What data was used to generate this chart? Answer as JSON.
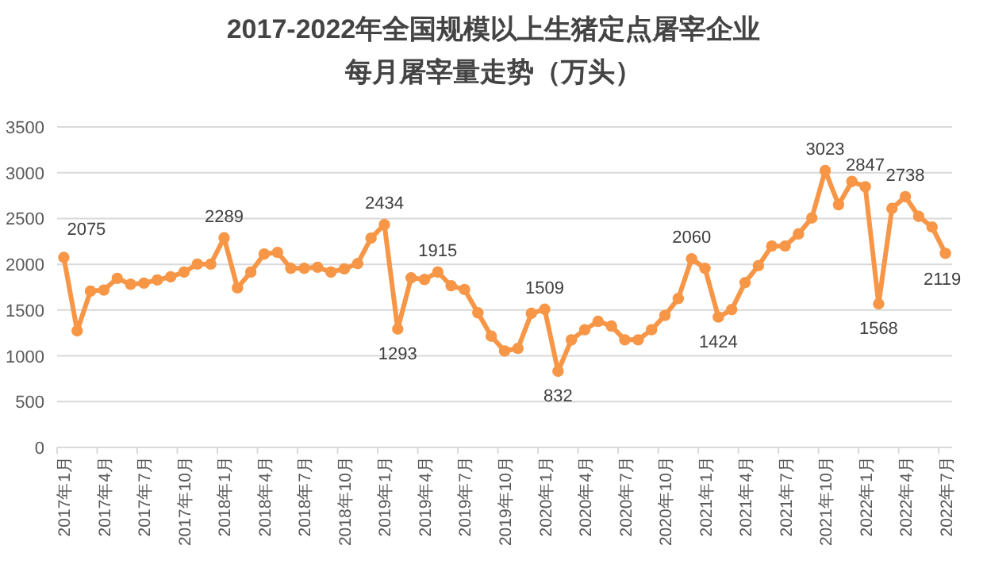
{
  "chart_data": {
    "type": "line",
    "title": "2017-2022年全国规模以上生猪定点屠宰企业",
    "subtitle": "每月屠宰量走势（万头）",
    "categories": [
      "2017年1月",
      null,
      null,
      "2017年4月",
      null,
      null,
      "2017年7月",
      null,
      null,
      "2017年10月",
      null,
      null,
      "2018年1月",
      null,
      null,
      "2018年4月",
      null,
      null,
      "2018年7月",
      null,
      null,
      "2018年10月",
      null,
      null,
      "2019年1月",
      null,
      null,
      "2019年4月",
      null,
      null,
      "2019年7月",
      null,
      null,
      "2019年10月",
      null,
      null,
      "2020年1月",
      null,
      null,
      "2020年4月",
      null,
      null,
      "2020年7月",
      null,
      null,
      "2020年10月",
      null,
      null,
      "2021年1月",
      null,
      null,
      "2021年4月",
      null,
      null,
      "2021年7月",
      null,
      null,
      "2021年10月",
      null,
      null,
      "2022年1月",
      null,
      null,
      "2022年4月",
      null,
      null,
      "2022年7月"
    ],
    "series": [
      {
        "color": "#f79646",
        "values": [
          2075,
          1274,
          1707,
          1719,
          1846,
          1782,
          1794,
          1829,
          1863,
          1915,
          2002,
          2002,
          2289,
          1742,
          1915,
          2112,
          2130,
          1956,
          1956,
          1968,
          1915,
          1950,
          2008,
          2286,
          2434,
          1293,
          1852,
          1834,
          1915,
          1765,
          1725,
          1470,
          1215,
          1053,
          1082,
          1464,
          1509,
          832,
          1175,
          1285,
          1377,
          1325,
          1175,
          1175,
          1285,
          1441,
          1626,
          2060,
          1956,
          1424,
          1505,
          1800,
          1985,
          2199,
          2199,
          2332,
          2506,
          3023,
          2650,
          2905,
          2847,
          1568,
          2610,
          2738,
          2523,
          2407,
          2119
        ],
        "value_labels": [
          "2075",
          null,
          null,
          null,
          null,
          null,
          null,
          null,
          null,
          null,
          null,
          null,
          "2289",
          null,
          null,
          null,
          null,
          null,
          null,
          null,
          null,
          null,
          null,
          null,
          "2434",
          "1293",
          null,
          null,
          "1915",
          null,
          null,
          null,
          null,
          null,
          null,
          null,
          "1509",
          "832",
          null,
          null,
          null,
          null,
          null,
          null,
          null,
          null,
          null,
          "2060",
          null,
          "1424",
          null,
          null,
          null,
          null,
          null,
          null,
          null,
          "3023",
          null,
          null,
          "2847",
          "1568",
          null,
          "2738",
          null,
          null,
          "2119"
        ]
      }
    ],
    "ylim": [
      0,
      3500
    ],
    "yticks": [
      0,
      500,
      1000,
      1500,
      2000,
      2500,
      3000,
      3500
    ],
    "grid": "y",
    "marker": "circle",
    "line_style": "solid"
  }
}
